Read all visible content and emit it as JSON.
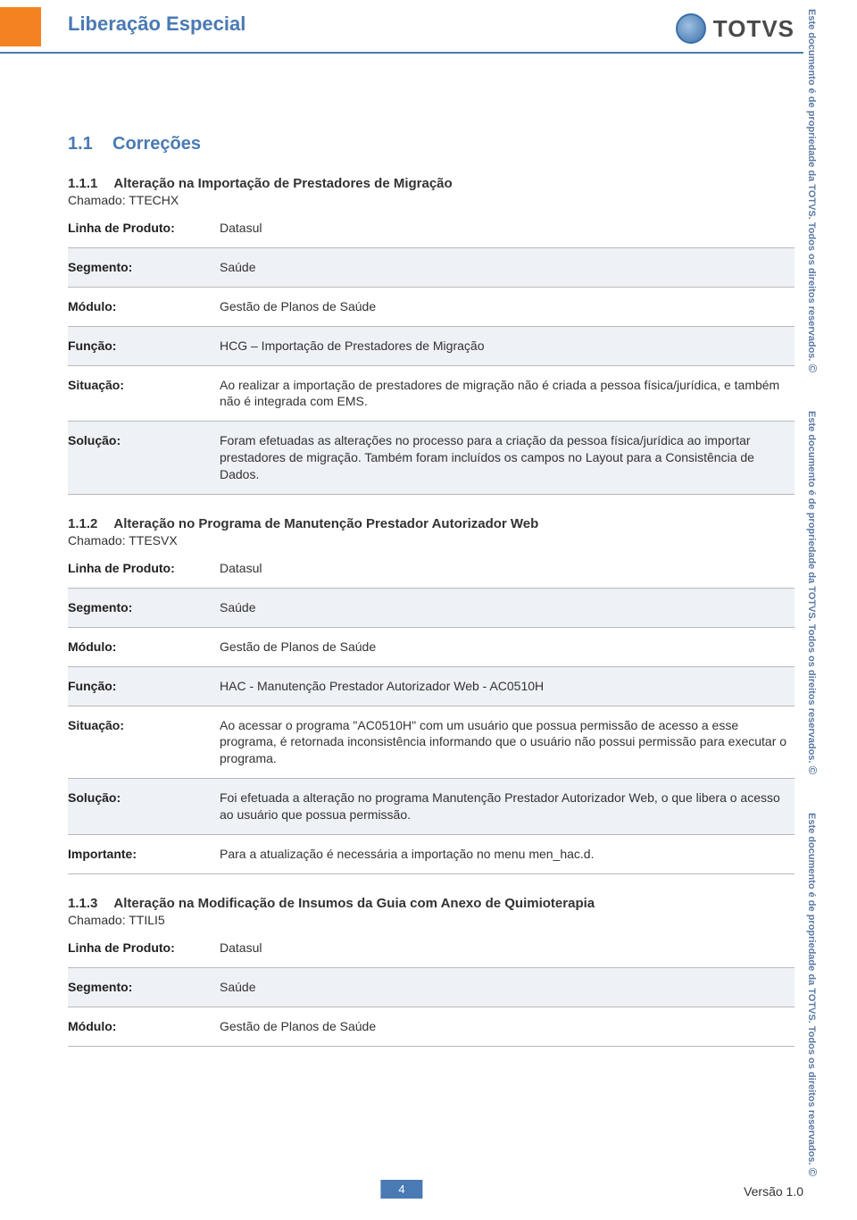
{
  "colors": {
    "accent_blue": "#4a7ab3",
    "accent_orange": "#f58220",
    "row_shade": "#eef1f5",
    "border": "#b9b9b9",
    "text": "#333333",
    "watermark_text": "#5b7aa3"
  },
  "header": {
    "title": "Liberação Especial",
    "logo_text": "TOTVS"
  },
  "watermark": {
    "text": "Este documento é de propriedade da TOTVS. Todos os direitos reservados.",
    "copy": "©"
  },
  "section": {
    "number": "1.1",
    "title": "Correções"
  },
  "labels": {
    "linha_produto": "Linha de Produto:",
    "segmento": "Segmento:",
    "modulo": "Módulo:",
    "funcao": "Função:",
    "situacao": "Situação:",
    "solucao": "Solução:",
    "importante": "Importante:",
    "chamado_prefix": "Chamado:"
  },
  "items": [
    {
      "num": "1.1.1",
      "title": "Alteração na Importação de Prestadores de Migração",
      "chamado": "TTECHX",
      "rows": [
        {
          "label_key": "linha_produto",
          "value": "Datasul",
          "shaded": false
        },
        {
          "label_key": "segmento",
          "value": "Saúde",
          "shaded": true
        },
        {
          "label_key": "modulo",
          "value": "Gestão de Planos de Saúde",
          "shaded": false
        },
        {
          "label_key": "funcao",
          "value": "HCG – Importação de Prestadores de Migração",
          "shaded": true
        },
        {
          "label_key": "situacao",
          "value": "Ao realizar a importação de prestadores de migração não é criada a pessoa física/jurídica, e também não é integrada com EMS.",
          "shaded": false
        },
        {
          "label_key": "solucao",
          "value": "Foram efetuadas as alterações no processo para a criação da pessoa física/jurídica ao importar prestadores de migração. Também foram incluídos os campos no Layout para a Consistência de Dados.",
          "shaded": true
        }
      ]
    },
    {
      "num": "1.1.2",
      "title": "Alteração no Programa de Manutenção Prestador Autorizador Web",
      "chamado": "TTESVX",
      "rows": [
        {
          "label_key": "linha_produto",
          "value": "Datasul",
          "shaded": false
        },
        {
          "label_key": "segmento",
          "value": "Saúde",
          "shaded": true
        },
        {
          "label_key": "modulo",
          "value": "Gestão de Planos de Saúde",
          "shaded": false
        },
        {
          "label_key": "funcao",
          "value": "HAC - Manutenção Prestador Autorizador Web - AC0510H",
          "shaded": true
        },
        {
          "label_key": "situacao",
          "value": "Ao acessar o programa \"AC0510H\" com um usuário que possua permissão de acesso a esse programa, é retornada inconsistência informando que o usuário não possui permissão para executar o programa.",
          "shaded": false
        },
        {
          "label_key": "solucao",
          "value": "Foi efetuada a alteração no programa Manutenção Prestador Autorizador Web, o que libera o acesso ao usuário que possua permissão.",
          "shaded": true
        },
        {
          "label_key": "importante",
          "value": "Para a atualização é necessária a importação no menu men_hac.d.",
          "shaded": false
        }
      ]
    },
    {
      "num": "1.1.3",
      "title": "Alteração na Modificação de Insumos da Guia com Anexo de Quimioterapia",
      "chamado": "TTILI5",
      "rows": [
        {
          "label_key": "linha_produto",
          "value": "Datasul",
          "shaded": false
        },
        {
          "label_key": "segmento",
          "value": "Saúde",
          "shaded": true
        },
        {
          "label_key": "modulo",
          "value": "Gestão de Planos de Saúde",
          "shaded": false
        }
      ]
    }
  ],
  "footer": {
    "page_number": "4",
    "version": "Versão 1.0"
  }
}
